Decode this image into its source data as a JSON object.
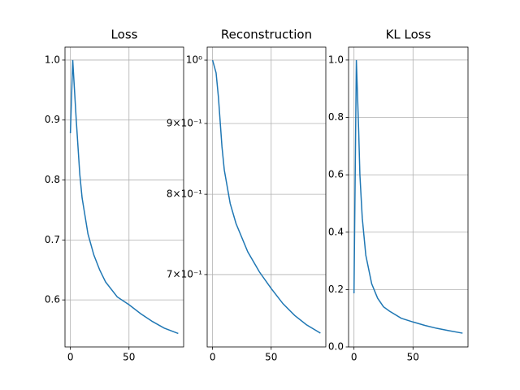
{
  "chart_data": [
    {
      "type": "line",
      "title": "Loss",
      "x": [
        0,
        2,
        5,
        8,
        10,
        15,
        20,
        25,
        30,
        40,
        50,
        60,
        70,
        80,
        92
      ],
      "series": [
        {
          "color": "#1f77b4",
          "values": [
            0.878,
            1.0,
            0.9,
            0.81,
            0.77,
            0.71,
            0.675,
            0.65,
            0.63,
            0.605,
            0.592,
            0.577,
            0.564,
            0.553,
            0.544
          ]
        }
      ],
      "xlim": [
        -4.6,
        96.6
      ],
      "xticks": [
        0,
        50
      ],
      "ylim": [
        0.5216,
        1.0216
      ],
      "yticks": [
        0.6,
        0.7,
        0.8,
        0.9,
        {
          "value": 1,
          "label": "1.0"
        }
      ],
      "yscale": "linear",
      "grid": true
    },
    {
      "type": "line",
      "title": "Reconstruction",
      "x": [
        0,
        3,
        5,
        8,
        10,
        15,
        20,
        30,
        40,
        50,
        60,
        70,
        80,
        92
      ],
      "series": [
        {
          "color": "#1f77b4",
          "values": [
            1.0,
            0.979,
            0.94,
            0.866,
            0.833,
            0.788,
            0.762,
            0.727,
            0.703,
            0.684,
            0.667,
            0.654,
            0.644,
            0.635
          ]
        }
      ],
      "xlim": [
        -4.6,
        96.6
      ],
      "xticks": [
        0,
        50
      ],
      "ylim": [
        0.6206,
        1.0219
      ],
      "yticks": [
        {
          "value": 0.7,
          "label": "7×10⁻¹"
        },
        {
          "value": 0.8,
          "label": "8×10⁻¹"
        },
        {
          "value": 0.9,
          "label": "9×10⁻¹"
        },
        {
          "value": 1,
          "label": "10⁰"
        }
      ],
      "yscale": "log",
      "grid": true
    },
    {
      "type": "line",
      "title": "KL Loss",
      "x": [
        0,
        2,
        4,
        5,
        7,
        10,
        15,
        20,
        25,
        30,
        40,
        50,
        60,
        70,
        80,
        92
      ],
      "series": [
        {
          "color": "#1f77b4",
          "values": [
            0.187,
            1.0,
            0.75,
            0.6,
            0.45,
            0.32,
            0.22,
            0.17,
            0.14,
            0.125,
            0.1,
            0.087,
            0.075,
            0.065,
            0.057,
            0.048
          ]
        }
      ],
      "xlim": [
        -4.6,
        96.6
      ],
      "xticks": [
        0,
        50
      ],
      "ylim": [
        0,
        1.045
      ],
      "yticks": [
        {
          "value": 0,
          "label": "0.0"
        },
        0.2,
        0.4,
        0.6,
        0.8,
        {
          "value": 1,
          "label": "1.0"
        }
      ],
      "yscale": "linear",
      "grid": true
    }
  ]
}
